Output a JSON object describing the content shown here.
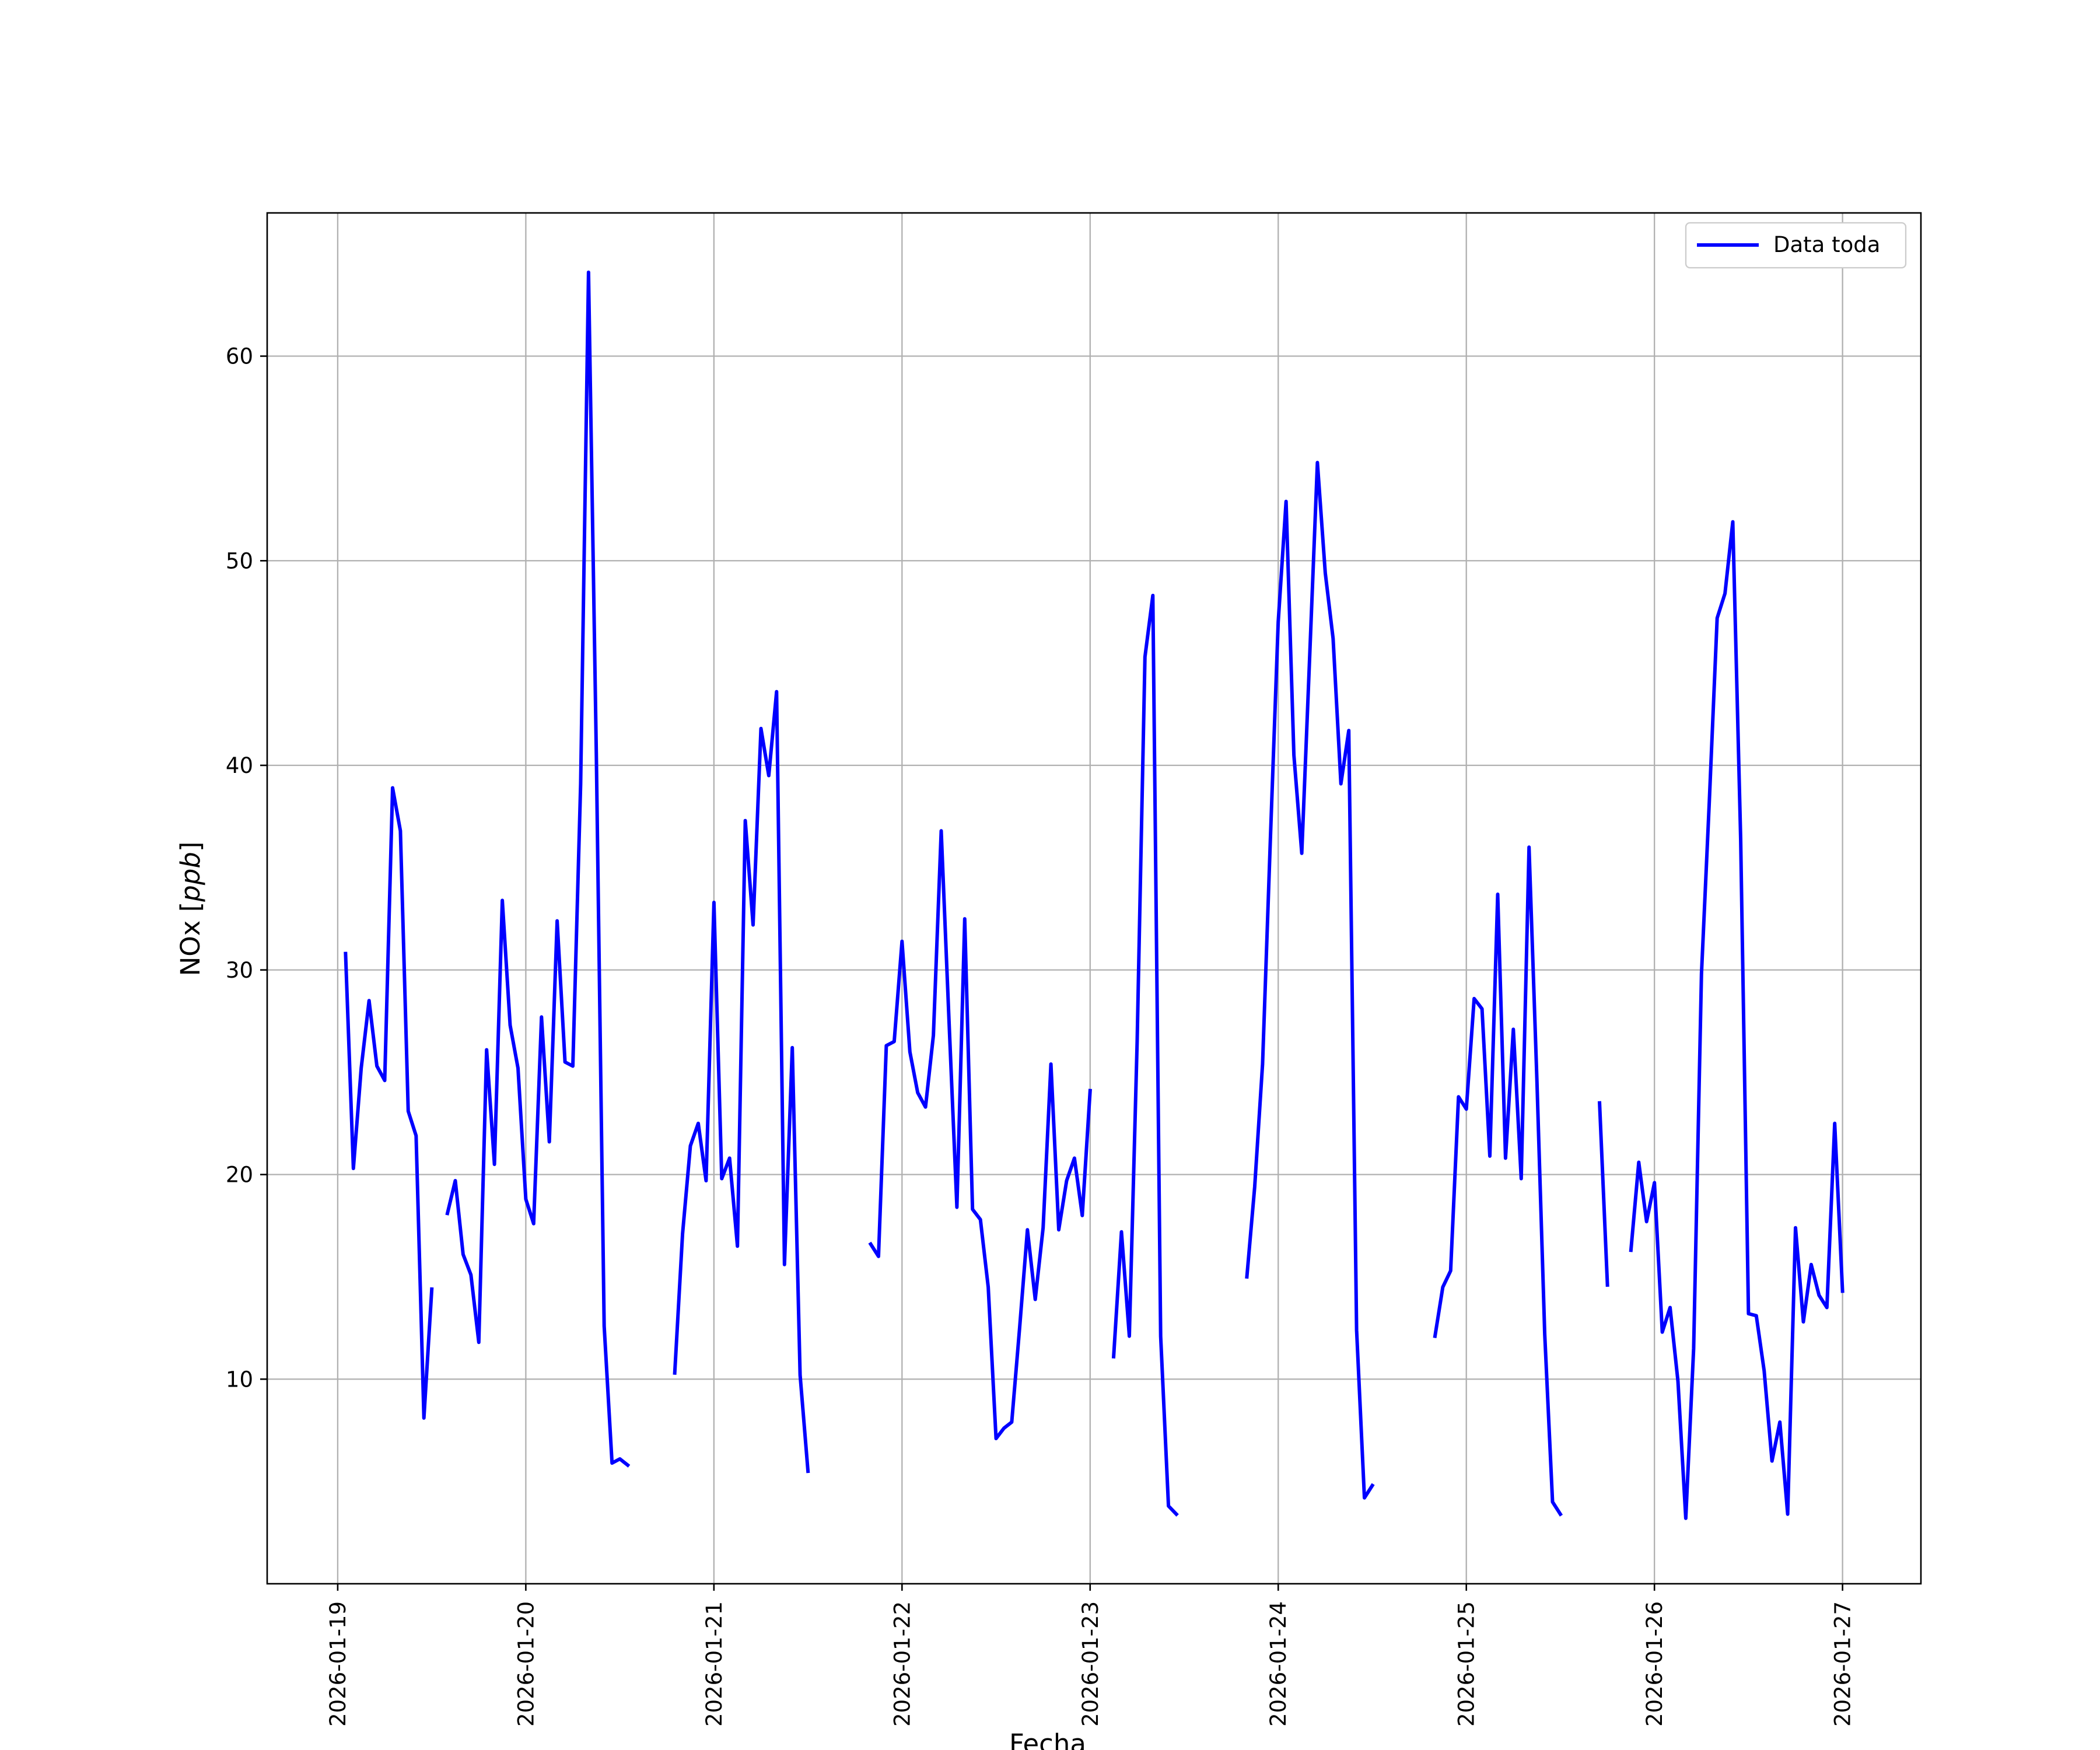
{
  "chart_data": {
    "type": "line",
    "xlabel": "Fecha",
    "ylabel_text": "NOx [",
    "ylabel_unit": "ppb",
    "ylabel_close": "]",
    "xlim": [
      "2026-01-18T15:00",
      "2026-01-27T10:00"
    ],
    "ylim": [
      0,
      67
    ],
    "grid": true,
    "legend_position": "top-right",
    "colors": {
      "series": "#0000ff",
      "grid": "#b0b0b0"
    },
    "x_ticks": [
      "2026-01-19",
      "2026-01-20",
      "2026-01-21",
      "2026-01-22",
      "2026-01-23",
      "2026-01-24",
      "2026-01-25",
      "2026-01-26",
      "2026-01-27"
    ],
    "y_ticks": [
      10,
      20,
      30,
      40,
      50,
      60
    ],
    "series": [
      {
        "name": "Data toda",
        "segments": [
          [
            [
              "2026-01-19T01:00",
              30.8
            ],
            [
              "2026-01-19T02:00",
              20.3
            ],
            [
              "2026-01-19T03:00",
              25.2
            ],
            [
              "2026-01-19T04:00",
              28.5
            ],
            [
              "2026-01-19T05:00",
              25.3
            ],
            [
              "2026-01-19T06:00",
              24.6
            ],
            [
              "2026-01-19T07:00",
              38.9
            ],
            [
              "2026-01-19T08:00",
              36.8
            ],
            [
              "2026-01-19T09:00",
              23.1
            ],
            [
              "2026-01-19T10:00",
              21.9
            ],
            [
              "2026-01-19T11:00",
              8.1
            ],
            [
              "2026-01-19T12:00",
              14.4
            ]
          ],
          [
            [
              "2026-01-19T14:00",
              18.1
            ],
            [
              "2026-01-19T15:00",
              19.7
            ],
            [
              "2026-01-19T16:00",
              16.1
            ],
            [
              "2026-01-19T17:00",
              15.1
            ],
            [
              "2026-01-19T18:00",
              11.8
            ],
            [
              "2026-01-19T19:00",
              26.1
            ],
            [
              "2026-01-19T20:00",
              20.5
            ],
            [
              "2026-01-19T21:00",
              33.4
            ],
            [
              "2026-01-19T22:00",
              27.3
            ],
            [
              "2026-01-19T23:00",
              25.2
            ],
            [
              "2026-01-20T00:00",
              18.8
            ],
            [
              "2026-01-20T01:00",
              17.6
            ],
            [
              "2026-01-20T02:00",
              27.7
            ],
            [
              "2026-01-20T03:00",
              21.6
            ],
            [
              "2026-01-20T04:00",
              32.4
            ],
            [
              "2026-01-20T05:00",
              25.5
            ],
            [
              "2026-01-20T06:00",
              25.3
            ],
            [
              "2026-01-20T07:00",
              39.1
            ],
            [
              "2026-01-20T08:00",
              64.1
            ],
            [
              "2026-01-20T09:00",
              40.5
            ],
            [
              "2026-01-20T10:00",
              12.6
            ],
            [
              "2026-01-20T11:00",
              5.9
            ],
            [
              "2026-01-20T12:00",
              6.1
            ],
            [
              "2026-01-20T13:00",
              5.8
            ]
          ],
          [
            [
              "2026-01-20T19:00",
              10.3
            ],
            [
              "2026-01-20T20:00",
              17.1
            ],
            [
              "2026-01-20T21:00",
              21.4
            ],
            [
              "2026-01-20T22:00",
              22.5
            ],
            [
              "2026-01-20T23:00",
              19.7
            ],
            [
              "2026-01-21T00:00",
              33.3
            ],
            [
              "2026-01-21T01:00",
              19.8
            ],
            [
              "2026-01-21T02:00",
              20.8
            ],
            [
              "2026-01-21T03:00",
              16.5
            ],
            [
              "2026-01-21T04:00",
              37.3
            ],
            [
              "2026-01-21T05:00",
              32.2
            ],
            [
              "2026-01-21T06:00",
              41.8
            ],
            [
              "2026-01-21T07:00",
              39.5
            ],
            [
              "2026-01-21T08:00",
              43.6
            ],
            [
              "2026-01-21T09:00",
              15.6
            ],
            [
              "2026-01-21T10:00",
              26.2
            ],
            [
              "2026-01-21T11:00",
              10.2
            ],
            [
              "2026-01-21T12:00",
              5.5
            ]
          ],
          [
            [
              "2026-01-21T20:00",
              16.6
            ],
            [
              "2026-01-21T21:00",
              16.0
            ],
            [
              "2026-01-21T22:00",
              26.3
            ],
            [
              "2026-01-21T23:00",
              26.5
            ],
            [
              "2026-01-22T00:00",
              31.4
            ],
            [
              "2026-01-22T01:00",
              26.0
            ],
            [
              "2026-01-22T02:00",
              24.0
            ],
            [
              "2026-01-22T03:00",
              23.3
            ],
            [
              "2026-01-22T04:00",
              26.8
            ],
            [
              "2026-01-22T05:00",
              36.8
            ],
            [
              "2026-01-22T06:00",
              27.5
            ],
            [
              "2026-01-22T07:00",
              18.4
            ],
            [
              "2026-01-22T08:00",
              32.5
            ],
            [
              "2026-01-22T09:00",
              18.3
            ],
            [
              "2026-01-22T10:00",
              17.8
            ],
            [
              "2026-01-22T11:00",
              14.5
            ],
            [
              "2026-01-22T12:00",
              7.1
            ],
            [
              "2026-01-22T13:00",
              7.6
            ],
            [
              "2026-01-22T14:00",
              7.9
            ],
            [
              "2026-01-22T15:00",
              12.5
            ],
            [
              "2026-01-22T16:00",
              17.3
            ],
            [
              "2026-01-22T17:00",
              13.9
            ],
            [
              "2026-01-22T18:00",
              17.4
            ],
            [
              "2026-01-22T19:00",
              25.4
            ],
            [
              "2026-01-22T20:00",
              17.3
            ],
            [
              "2026-01-22T21:00",
              19.7
            ],
            [
              "2026-01-22T22:00",
              20.8
            ],
            [
              "2026-01-22T23:00",
              18.0
            ],
            [
              "2026-01-23T00:00",
              24.1
            ]
          ],
          [
            [
              "2026-01-23T03:00",
              11.1
            ],
            [
              "2026-01-23T04:00",
              17.2
            ],
            [
              "2026-01-23T05:00",
              12.1
            ],
            [
              "2026-01-23T06:00",
              26.5
            ],
            [
              "2026-01-23T07:00",
              45.3
            ],
            [
              "2026-01-23T08:00",
              48.3
            ],
            [
              "2026-01-23T09:00",
              12.1
            ],
            [
              "2026-01-23T10:00",
              3.8
            ],
            [
              "2026-01-23T11:00",
              3.4
            ]
          ],
          [
            [
              "2026-01-23T20:00",
              15.0
            ],
            [
              "2026-01-23T21:00",
              19.4
            ],
            [
              "2026-01-23T22:00",
              25.4
            ],
            [
              "2026-01-23T23:00",
              36.4
            ],
            [
              "2026-01-24T00:00",
              47.0
            ],
            [
              "2026-01-24T01:00",
              52.9
            ],
            [
              "2026-01-24T02:00",
              40.5
            ],
            [
              "2026-01-24T03:00",
              35.7
            ],
            [
              "2026-01-24T04:00",
              45.2
            ],
            [
              "2026-01-24T05:00",
              54.8
            ],
            [
              "2026-01-24T06:00",
              49.4
            ],
            [
              "2026-01-24T07:00",
              46.2
            ],
            [
              "2026-01-24T08:00",
              39.1
            ],
            [
              "2026-01-24T09:00",
              41.7
            ],
            [
              "2026-01-24T10:00",
              12.4
            ],
            [
              "2026-01-24T11:00",
              4.2
            ],
            [
              "2026-01-24T12:00",
              4.8
            ]
          ],
          [
            [
              "2026-01-24T20:00",
              12.1
            ],
            [
              "2026-01-24T21:00",
              14.5
            ],
            [
              "2026-01-24T22:00",
              15.3
            ],
            [
              "2026-01-24T23:00",
              23.8
            ],
            [
              "2026-01-25T00:00",
              23.2
            ],
            [
              "2026-01-25T01:00",
              28.6
            ],
            [
              "2026-01-25T02:00",
              28.1
            ],
            [
              "2026-01-25T03:00",
              20.9
            ],
            [
              "2026-01-25T04:00",
              33.7
            ],
            [
              "2026-01-25T05:00",
              20.8
            ],
            [
              "2026-01-25T06:00",
              27.1
            ],
            [
              "2026-01-25T07:00",
              19.8
            ],
            [
              "2026-01-25T08:00",
              36.0
            ],
            [
              "2026-01-25T09:00",
              24.7
            ],
            [
              "2026-01-25T10:00",
              12.2
            ],
            [
              "2026-01-25T11:00",
              4.0
            ],
            [
              "2026-01-25T12:00",
              3.4
            ]
          ],
          [
            [
              "2026-01-25T17:00",
              23.5
            ],
            [
              "2026-01-25T18:00",
              14.6
            ]
          ],
          [
            [
              "2026-01-25T21:00",
              16.3
            ],
            [
              "2026-01-25T22:00",
              20.6
            ],
            [
              "2026-01-25T23:00",
              17.7
            ],
            [
              "2026-01-26T00:00",
              19.6
            ],
            [
              "2026-01-26T01:00",
              12.3
            ],
            [
              "2026-01-26T02:00",
              13.5
            ],
            [
              "2026-01-26T03:00",
              9.9
            ],
            [
              "2026-01-26T04:00",
              3.2
            ],
            [
              "2026-01-26T05:00",
              11.5
            ],
            [
              "2026-01-26T06:00",
              29.8
            ],
            [
              "2026-01-26T07:00",
              38.2
            ],
            [
              "2026-01-26T08:00",
              47.2
            ],
            [
              "2026-01-26T09:00",
              48.4
            ],
            [
              "2026-01-26T10:00",
              51.9
            ],
            [
              "2026-01-26T11:00",
              36.4
            ],
            [
              "2026-01-26T12:00",
              13.2
            ],
            [
              "2026-01-26T13:00",
              13.1
            ],
            [
              "2026-01-26T14:00",
              10.4
            ],
            [
              "2026-01-26T15:00",
              6.0
            ],
            [
              "2026-01-26T16:00",
              7.9
            ],
            [
              "2026-01-26T17:00",
              3.4
            ],
            [
              "2026-01-26T18:00",
              17.4
            ],
            [
              "2026-01-26T19:00",
              12.8
            ],
            [
              "2026-01-26T20:00",
              15.6
            ],
            [
              "2026-01-26T21:00",
              14.1
            ],
            [
              "2026-01-26T22:00",
              13.5
            ],
            [
              "2026-01-26T23:00",
              22.5
            ],
            [
              "2026-01-27T00:00",
              14.3
            ]
          ]
        ]
      }
    ]
  }
}
